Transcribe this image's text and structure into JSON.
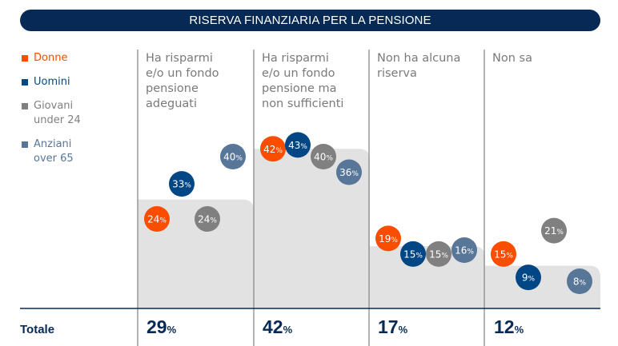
{
  "title": "RISERVA FINANZIARIA PER LA PENSIONE",
  "legend": [
    {
      "label": "Donne",
      "color": "#fa4d00"
    },
    {
      "label": "Uomini",
      "color": "#024785"
    },
    {
      "label": "Giovani\nunder 24",
      "color": "#808080"
    },
    {
      "label": "Anziani\nover 65",
      "color": "#587698"
    }
  ],
  "totale_label": "Totale",
  "colors": {
    "title_bg": "#062a55",
    "bar_bg": "#e2e2e2",
    "divider": "#8a8a8a",
    "axis_line": "#062a55",
    "total_text": "#062a55"
  },
  "chart_data": {
    "type": "scatter",
    "title": "RISERVA FINANZIARIA PER LA PENSIONE",
    "categories": [
      "Ha risparmi\ne/o un fondo\npensione\nadeguati",
      "Ha risparmi\ne/o un fondo\npensione ma\nnon sufficienti",
      "Non ha alcuna\nriserva",
      "Non sa"
    ],
    "totals": [
      29,
      42,
      17,
      12
    ],
    "unit": "%",
    "series": [
      {
        "name": "Donne",
        "color": "#fa4d00",
        "values": [
          24,
          42,
          19,
          15
        ]
      },
      {
        "name": "Uomini",
        "color": "#024785",
        "values": [
          33,
          43,
          15,
          9
        ]
      },
      {
        "name": "Giovani under 24",
        "color": "#808080",
        "values": [
          24,
          40,
          15,
          21
        ]
      },
      {
        "name": "Anziani over 65",
        "color": "#587698",
        "values": [
          40,
          36,
          16,
          8
        ]
      }
    ],
    "legend_position": "left",
    "grid": false
  }
}
